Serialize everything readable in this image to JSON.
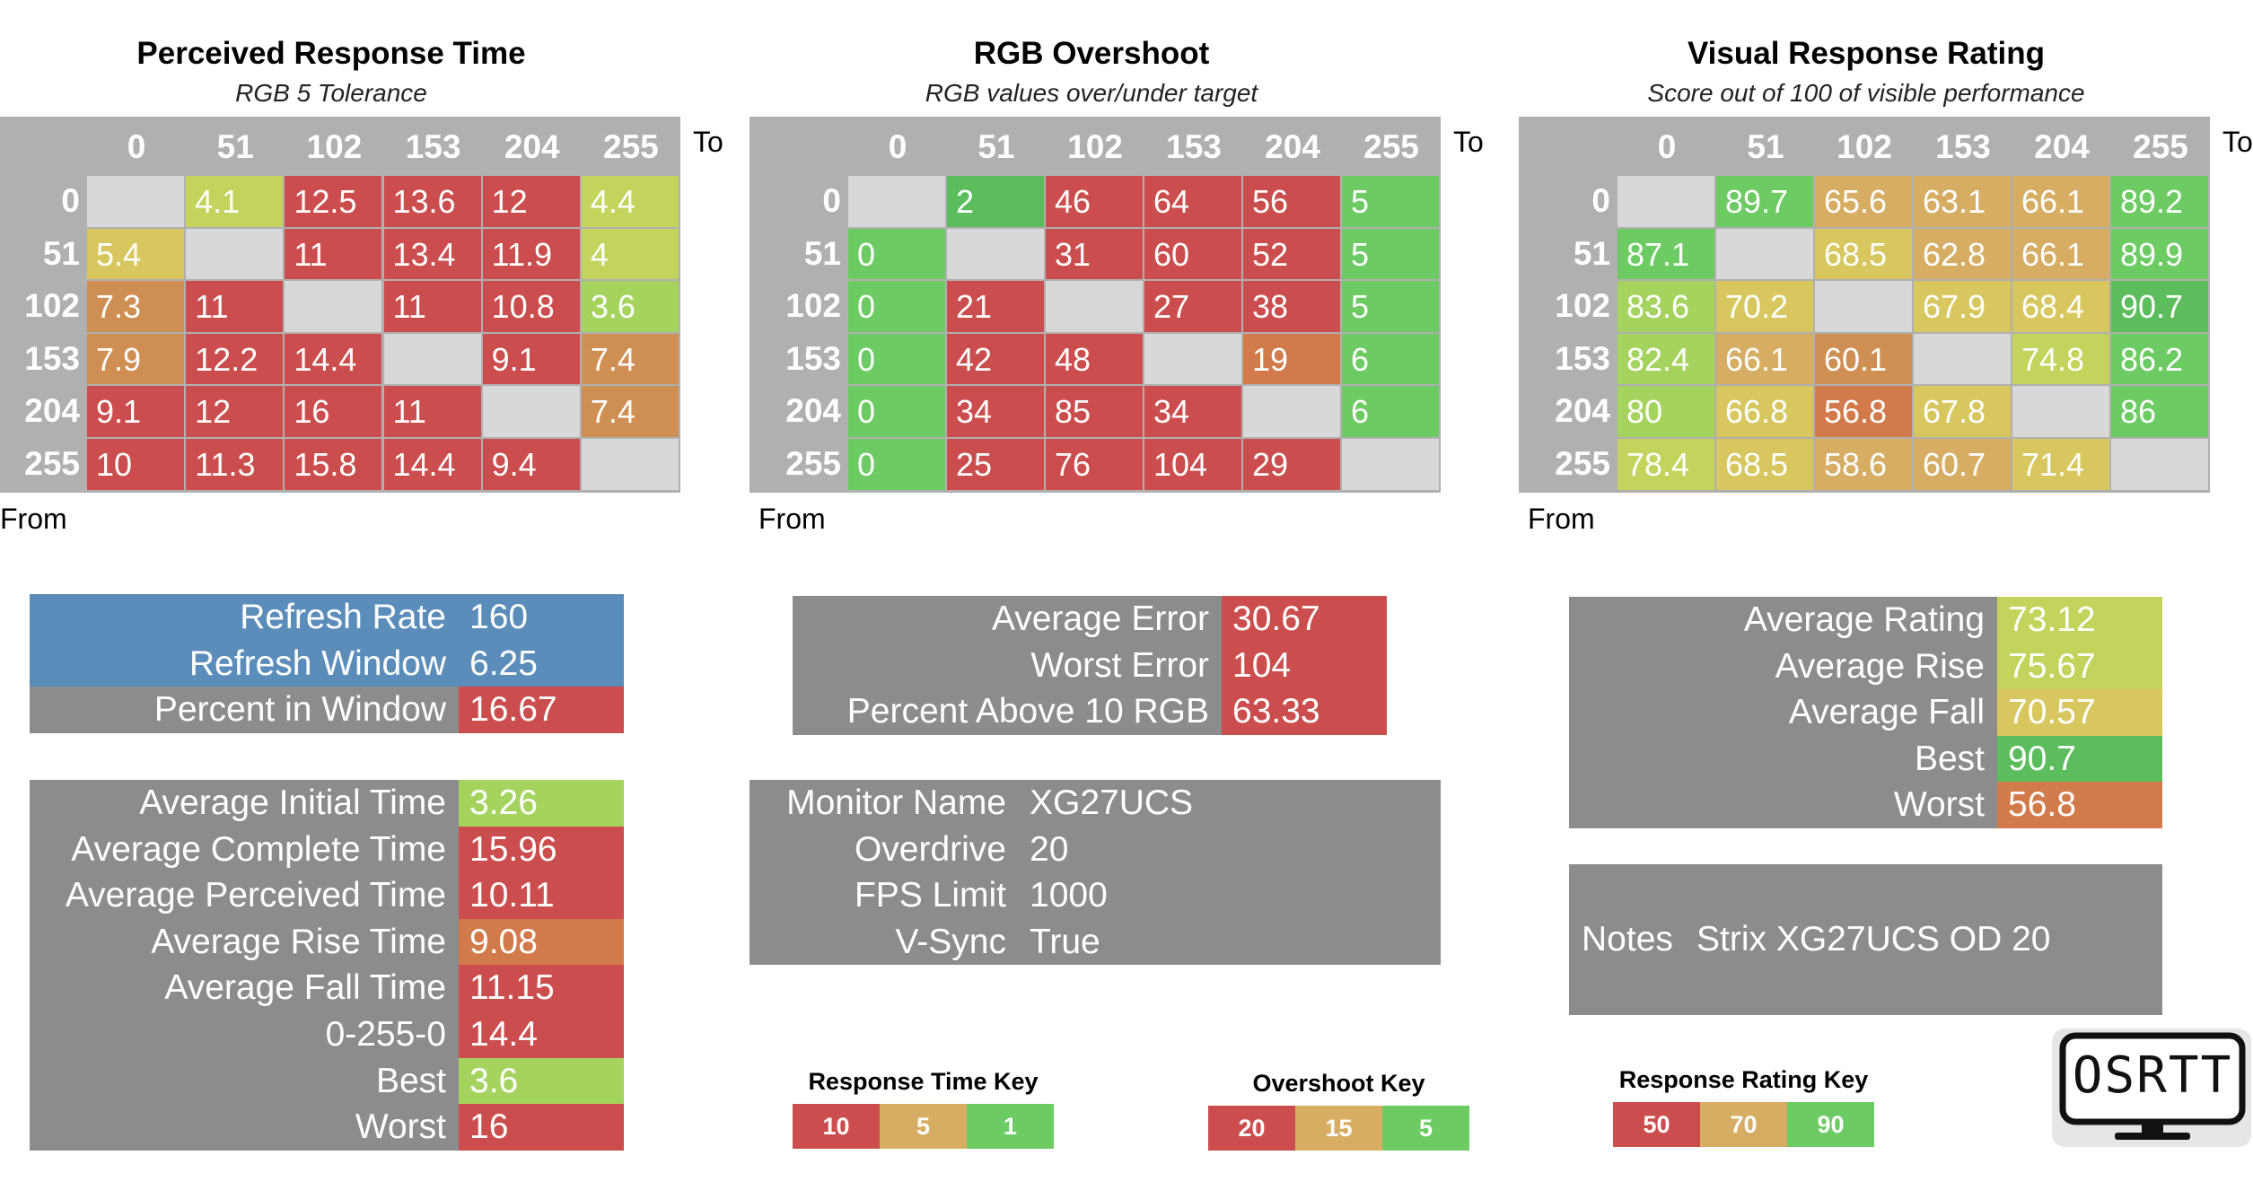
{
  "colors": {
    "red": "#cc4d4d",
    "orange": "#d27a4a",
    "orange2": "#cf8e52",
    "tan": "#d6ad62",
    "yellow": "#d7c75e",
    "yellowgreen": "#c3d35c",
    "lightgreen": "#a4d45e",
    "green": "#6ccb63",
    "green2": "#5bbd5b",
    "gray_cell": "#d8d8d8",
    "header_gray": "#b0b0b0",
    "panel_gray": "#8c8c8c",
    "blue": "#5b8dbb"
  },
  "matrix_axis": {
    "to_label": "To",
    "from_label": "From",
    "headers": [
      "0",
      "51",
      "102",
      "153",
      "204",
      "255"
    ]
  },
  "matrices": [
    {
      "title": "Perceived Response Time",
      "subtitle": "RGB 5 Tolerance",
      "cells": [
        [
          "",
          "4.1",
          "12.5",
          "13.6",
          "12",
          "4.4"
        ],
        [
          "5.4",
          "",
          "11",
          "13.4",
          "11.9",
          "4"
        ],
        [
          "7.3",
          "11",
          "",
          "11",
          "10.8",
          "3.6"
        ],
        [
          "7.9",
          "12.2",
          "14.4",
          "",
          "9.1",
          "7.4"
        ],
        [
          "9.1",
          "12",
          "16",
          "11",
          "",
          "7.4"
        ],
        [
          "10",
          "11.3",
          "15.8",
          "14.4",
          "9.4",
          ""
        ]
      ],
      "cell_colors": [
        [
          "gray_cell",
          "yellowgreen",
          "red",
          "red",
          "red",
          "yellowgreen"
        ],
        [
          "yellow",
          "gray_cell",
          "red",
          "red",
          "red",
          "yellowgreen"
        ],
        [
          "orange2",
          "red",
          "gray_cell",
          "red",
          "red",
          "lightgreen"
        ],
        [
          "orange2",
          "red",
          "red",
          "gray_cell",
          "red",
          "orange2"
        ],
        [
          "red",
          "red",
          "red",
          "red",
          "gray_cell",
          "orange2"
        ],
        [
          "red",
          "red",
          "red",
          "red",
          "red",
          "gray_cell"
        ]
      ]
    },
    {
      "title": "RGB Overshoot",
      "subtitle": "RGB values over/under target",
      "cells": [
        [
          "",
          "2",
          "46",
          "64",
          "56",
          "5"
        ],
        [
          "0",
          "",
          "31",
          "60",
          "52",
          "5"
        ],
        [
          "0",
          "21",
          "",
          "27",
          "38",
          "5"
        ],
        [
          "0",
          "42",
          "48",
          "",
          "19",
          "6"
        ],
        [
          "0",
          "34",
          "85",
          "34",
          "",
          "6"
        ],
        [
          "0",
          "25",
          "76",
          "104",
          "29",
          ""
        ]
      ],
      "cell_colors": [
        [
          "gray_cell",
          "green2",
          "red",
          "red",
          "red",
          "green"
        ],
        [
          "green",
          "gray_cell",
          "red",
          "red",
          "red",
          "green"
        ],
        [
          "green",
          "red",
          "gray_cell",
          "red",
          "red",
          "green"
        ],
        [
          "green",
          "red",
          "red",
          "gray_cell",
          "orange",
          "green"
        ],
        [
          "green",
          "red",
          "red",
          "red",
          "gray_cell",
          "green"
        ],
        [
          "green",
          "red",
          "red",
          "red",
          "red",
          "gray_cell"
        ]
      ]
    },
    {
      "title": "Visual Response Rating",
      "subtitle": "Score out of 100 of visible performance",
      "cells": [
        [
          "",
          "89.7",
          "65.6",
          "63.1",
          "66.1",
          "89.2"
        ],
        [
          "87.1",
          "",
          "68.5",
          "62.8",
          "66.1",
          "89.9"
        ],
        [
          "83.6",
          "70.2",
          "",
          "67.9",
          "68.4",
          "90.7"
        ],
        [
          "82.4",
          "66.1",
          "60.1",
          "",
          "74.8",
          "86.2"
        ],
        [
          "80",
          "66.8",
          "56.8",
          "67.8",
          "",
          "86"
        ],
        [
          "78.4",
          "68.5",
          "58.6",
          "60.7",
          "71.4",
          ""
        ]
      ],
      "cell_colors": [
        [
          "gray_cell",
          "green",
          "tan",
          "tan",
          "tan",
          "green"
        ],
        [
          "green",
          "gray_cell",
          "yellow",
          "tan",
          "tan",
          "green"
        ],
        [
          "lightgreen",
          "yellow",
          "gray_cell",
          "yellow",
          "yellow",
          "green2"
        ],
        [
          "lightgreen",
          "tan",
          "orange2",
          "gray_cell",
          "yellowgreen",
          "green"
        ],
        [
          "lightgreen",
          "yellow",
          "orange",
          "yellow",
          "gray_cell",
          "green"
        ],
        [
          "yellowgreen",
          "yellow",
          "tan",
          "tan",
          "yellow",
          "gray_cell"
        ]
      ]
    }
  ],
  "refresh_panel": {
    "rows": [
      {
        "label": "Refresh Rate",
        "value": "160",
        "label_color": "blue",
        "value_color": "blue"
      },
      {
        "label": "Refresh Window",
        "value": "6.25",
        "label_color": "blue",
        "value_color": "blue"
      },
      {
        "label": "Percent in Window",
        "value": "16.67",
        "label_color": "panel_gray",
        "value_color": "red"
      }
    ]
  },
  "response_panel": {
    "rows": [
      {
        "label": "Average Initial Time",
        "value": "3.26",
        "value_color": "lightgreen"
      },
      {
        "label": "Average Complete Time",
        "value": "15.96",
        "value_color": "red"
      },
      {
        "label": "Average Perceived Time",
        "value": "10.11",
        "value_color": "red"
      },
      {
        "label": "Average Rise Time",
        "value": "9.08",
        "value_color": "orange"
      },
      {
        "label": "Average Fall Time",
        "value": "11.15",
        "value_color": "red"
      },
      {
        "label": "0-255-0",
        "value": "14.4",
        "value_color": "red"
      },
      {
        "label": "Best",
        "value": "3.6",
        "value_color": "lightgreen"
      },
      {
        "label": "Worst",
        "value": "16",
        "value_color": "red"
      }
    ]
  },
  "error_panel": {
    "rows": [
      {
        "label": "Average Error",
        "value": "30.67",
        "value_color": "red"
      },
      {
        "label": "Worst Error",
        "value": "104",
        "value_color": "red"
      },
      {
        "label": "Percent Above 10 RGB",
        "value": "63.33",
        "value_color": "red"
      }
    ]
  },
  "monitor_panel": {
    "rows": [
      {
        "label": "Monitor Name",
        "value": "XG27UCS"
      },
      {
        "label": "Overdrive",
        "value": "20"
      },
      {
        "label": "FPS Limit",
        "value": "1000"
      },
      {
        "label": "V-Sync",
        "value": "True"
      }
    ]
  },
  "rating_panel": {
    "rows": [
      {
        "label": "Average Rating",
        "value": "73.12",
        "value_color": "yellowgreen"
      },
      {
        "label": "Average Rise",
        "value": "75.67",
        "value_color": "yellowgreen"
      },
      {
        "label": "Average Fall",
        "value": "70.57",
        "value_color": "yellow"
      },
      {
        "label": "Best",
        "value": "90.7",
        "value_color": "green2"
      },
      {
        "label": "Worst",
        "value": "56.8",
        "value_color": "orange"
      }
    ]
  },
  "notes_panel": {
    "label": "Notes",
    "value": "Strix XG27UCS OD 20"
  },
  "keys": [
    {
      "title": "Response Time Key",
      "boxes": [
        {
          "text": "10",
          "color": "red"
        },
        {
          "text": "5",
          "color": "tan"
        },
        {
          "text": "1",
          "color": "green"
        }
      ]
    },
    {
      "title": "Overshoot Key",
      "boxes": [
        {
          "text": "20",
          "color": "red"
        },
        {
          "text": "15",
          "color": "tan"
        },
        {
          "text": "5",
          "color": "green"
        }
      ]
    },
    {
      "title": "Response Rating Key",
      "boxes": [
        {
          "text": "50",
          "color": "red"
        },
        {
          "text": "70",
          "color": "tan"
        },
        {
          "text": "90",
          "color": "green"
        }
      ]
    }
  ],
  "logo": {
    "text": "OSRTT",
    "icon": "monitor-icon"
  }
}
